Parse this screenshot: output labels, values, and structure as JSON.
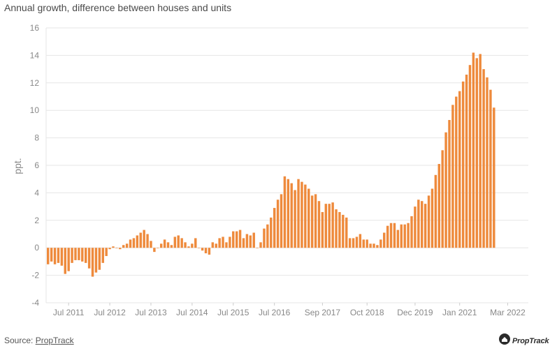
{
  "chart_data": {
    "type": "bar",
    "title": "Annual growth, difference between houses and units",
    "xlabel": "",
    "ylabel": "ppt.",
    "ylim": [
      -4,
      16
    ],
    "yticks": [
      -4,
      -2,
      0,
      2,
      4,
      6,
      8,
      10,
      12,
      14,
      16
    ],
    "xtick_labels": [
      "Jul 2011",
      "Jul 2012",
      "Jul 2013",
      "Jul 2014",
      "Jul 2015",
      "Jul 2016",
      "Sep 2017",
      "Oct 2018",
      "Dec 2019",
      "Jan 2021",
      "Mar 2022"
    ],
    "grid": true,
    "color": "#ee8a3c",
    "values": [
      -1.2,
      -1.0,
      -1.2,
      -1.1,
      -1.3,
      -1.9,
      -1.7,
      -1.1,
      -0.9,
      -0.9,
      -1.0,
      -1.1,
      -1.5,
      -2.1,
      -1.8,
      -1.6,
      -1.1,
      -0.6,
      -0.1,
      0.1,
      0.0,
      -0.1,
      0.2,
      0.3,
      0.6,
      0.7,
      0.9,
      1.1,
      1.3,
      1.0,
      0.5,
      -0.3,
      0.0,
      0.3,
      0.6,
      0.4,
      0.2,
      0.8,
      0.9,
      0.7,
      0.4,
      0.1,
      0.3,
      0.7,
      0.0,
      -0.2,
      -0.4,
      -0.5,
      0.4,
      0.3,
      0.7,
      0.8,
      0.4,
      0.8,
      1.2,
      1.2,
      1.3,
      0.7,
      1.0,
      0.9,
      1.1,
      0.0,
      0.4,
      1.4,
      1.7,
      2.2,
      2.9,
      3.5,
      3.9,
      5.2,
      5.0,
      4.7,
      4.2,
      5.0,
      4.8,
      4.6,
      4.3,
      3.8,
      3.9,
      3.4,
      2.6,
      3.2,
      3.2,
      3.3,
      2.8,
      2.6,
      2.4,
      2.2,
      0.7,
      0.7,
      0.8,
      1.0,
      0.6,
      0.6,
      0.3,
      0.3,
      0.2,
      0.6,
      1.1,
      1.6,
      1.8,
      1.8,
      1.3,
      1.7,
      1.7,
      1.8,
      2.3,
      3.0,
      3.5,
      3.4,
      3.2,
      3.8,
      4.3,
      5.3,
      6.1,
      7.1,
      8.4,
      9.3,
      10.4,
      11.0,
      11.4,
      12.1,
      12.6,
      13.3,
      14.2,
      13.8,
      14.1,
      13.0,
      12.4,
      11.5,
      10.2
    ]
  },
  "footer": {
    "source_prefix": "Source: ",
    "source_link": "PropTrack",
    "logo_text": "PropTrack"
  }
}
